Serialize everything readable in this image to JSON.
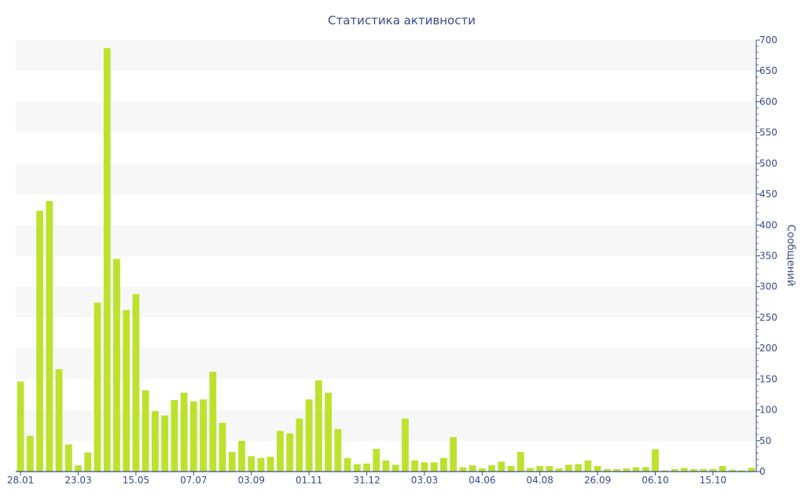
{
  "colors": {
    "bar": "#bce22e",
    "axis": "#3a4a8a",
    "text": "#3a4a8a",
    "band": "#f7f7f7"
  },
  "chart_data": {
    "type": "bar",
    "title": "Статистика активности",
    "ylabel": "Сообщений",
    "ylim": [
      0,
      700
    ],
    "y_ticks": [
      0,
      50,
      100,
      150,
      200,
      250,
      300,
      350,
      400,
      450,
      500,
      550,
      600,
      650,
      700
    ],
    "y_axis_side": "right",
    "grid": "alternating horizontal bands",
    "legend": "none",
    "x_tick_labels": [
      "28.01",
      "23.03",
      "15.05",
      "07.07",
      "03.09",
      "01.11",
      "31.12",
      "03.03",
      "04.06",
      "04.08",
      "26.09",
      "06.10",
      "15.10"
    ],
    "x_tick_positions": [
      0,
      6,
      12,
      18,
      24,
      30,
      36,
      42,
      48,
      54,
      60,
      66,
      72
    ],
    "values": [
      146,
      58,
      423,
      439,
      166,
      44,
      10,
      31,
      274,
      687,
      345,
      262,
      288,
      132,
      98,
      91,
      116,
      128,
      114,
      117,
      162,
      79,
      32,
      50,
      25,
      22,
      24,
      66,
      62,
      86,
      117,
      148,
      128,
      69,
      22,
      12,
      13,
      37,
      18,
      11,
      86,
      18,
      15,
      15,
      22,
      56,
      7,
      10,
      5,
      10,
      16,
      9,
      32,
      6,
      9,
      9,
      5,
      11,
      12,
      18,
      9,
      4,
      4,
      5,
      7,
      7,
      36,
      2,
      4,
      6,
      4,
      4,
      4,
      9,
      3,
      2,
      6
    ]
  }
}
